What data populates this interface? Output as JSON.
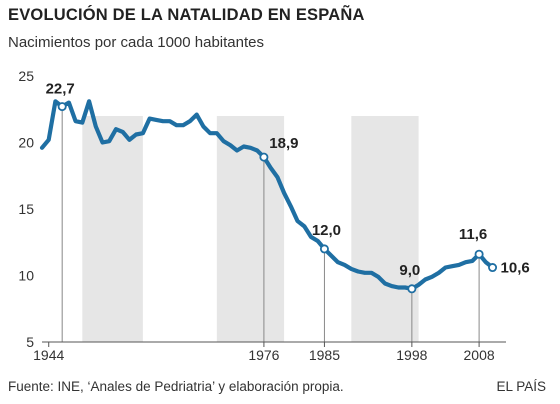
{
  "header": {
    "title": "EVOLUCIÓN DE LA NATALIDAD EN ESPAÑA",
    "subtitle": "Nacimientos por cada 1000 habitantes"
  },
  "footer": {
    "source": "Fuente: INE, ‘Anales de Pedriatria’ y elaboración propia.",
    "brand": "EL PAÍS"
  },
  "colors": {
    "line": "#1f6fa3",
    "band": "#e6e6e6",
    "axis": "#555555"
  },
  "chart_data": {
    "type": "line",
    "title": "EVOLUCIÓN DE LA NATALIDAD EN ESPAÑA",
    "subtitle": "Nacimientos por cada 1000 habitantes",
    "xlabel": "",
    "ylabel": "",
    "xlim": [
      1943,
      2012
    ],
    "ylim": [
      5,
      25
    ],
    "y_ticks": [
      5,
      10,
      15,
      20,
      25
    ],
    "x_ticks": [
      {
        "x": 1944,
        "label": "1944"
      },
      {
        "x": 1976,
        "label": "1976"
      },
      {
        "x": 1985,
        "label": "1985"
      },
      {
        "x": 1998,
        "label": "1998"
      },
      {
        "x": 2008,
        "label": "2008"
      }
    ],
    "shaded_periods": [
      [
        1949,
        1958
      ],
      [
        1969,
        1979
      ],
      [
        1989,
        1999
      ]
    ],
    "grid": false,
    "x": [
      1943,
      1944,
      1945,
      1946,
      1947,
      1948,
      1949,
      1950,
      1951,
      1952,
      1953,
      1954,
      1955,
      1956,
      1957,
      1958,
      1959,
      1960,
      1961,
      1962,
      1963,
      1964,
      1965,
      1966,
      1967,
      1968,
      1969,
      1970,
      1971,
      1972,
      1973,
      1974,
      1975,
      1976,
      1977,
      1978,
      1979,
      1980,
      1981,
      1982,
      1983,
      1984,
      1985,
      1986,
      1987,
      1988,
      1989,
      1990,
      1991,
      1992,
      1993,
      1994,
      1995,
      1996,
      1997,
      1998,
      1999,
      2000,
      2001,
      2002,
      2003,
      2004,
      2005,
      2006,
      2007,
      2008,
      2009,
      2010
    ],
    "series": [
      {
        "name": "",
        "values": [
          19.6,
          20.2,
          23.1,
          22.7,
          23.0,
          21.6,
          21.5,
          23.1,
          21.2,
          20.0,
          20.1,
          21.0,
          20.8,
          20.2,
          20.6,
          20.7,
          21.8,
          21.7,
          21.6,
          21.6,
          21.3,
          21.3,
          21.6,
          22.1,
          21.2,
          20.7,
          20.7,
          20.1,
          19.8,
          19.4,
          19.7,
          19.6,
          19.4,
          18.9,
          18.1,
          17.4,
          16.2,
          15.2,
          14.1,
          13.7,
          12.9,
          12.6,
          12.0,
          11.5,
          11.0,
          10.8,
          10.5,
          10.3,
          10.2,
          10.2,
          9.9,
          9.4,
          9.2,
          9.1,
          9.1,
          9.0,
          9.3,
          9.7,
          9.9,
          10.2,
          10.6,
          10.7,
          10.8,
          11.0,
          11.1,
          11.6,
          11.0,
          10.6
        ]
      }
    ],
    "data_labels": [
      {
        "x": 1946,
        "y": 22.7,
        "text": "22,7"
      },
      {
        "x": 1976,
        "y": 18.9,
        "text": "18,9"
      },
      {
        "x": 1985,
        "y": 12.0,
        "text": "12,0"
      },
      {
        "x": 1998,
        "y": 9.0,
        "text": "9,0"
      },
      {
        "x": 2008,
        "y": 11.6,
        "text": "11,6"
      },
      {
        "x": 2010,
        "y": 10.6,
        "text": "10,6"
      }
    ]
  }
}
